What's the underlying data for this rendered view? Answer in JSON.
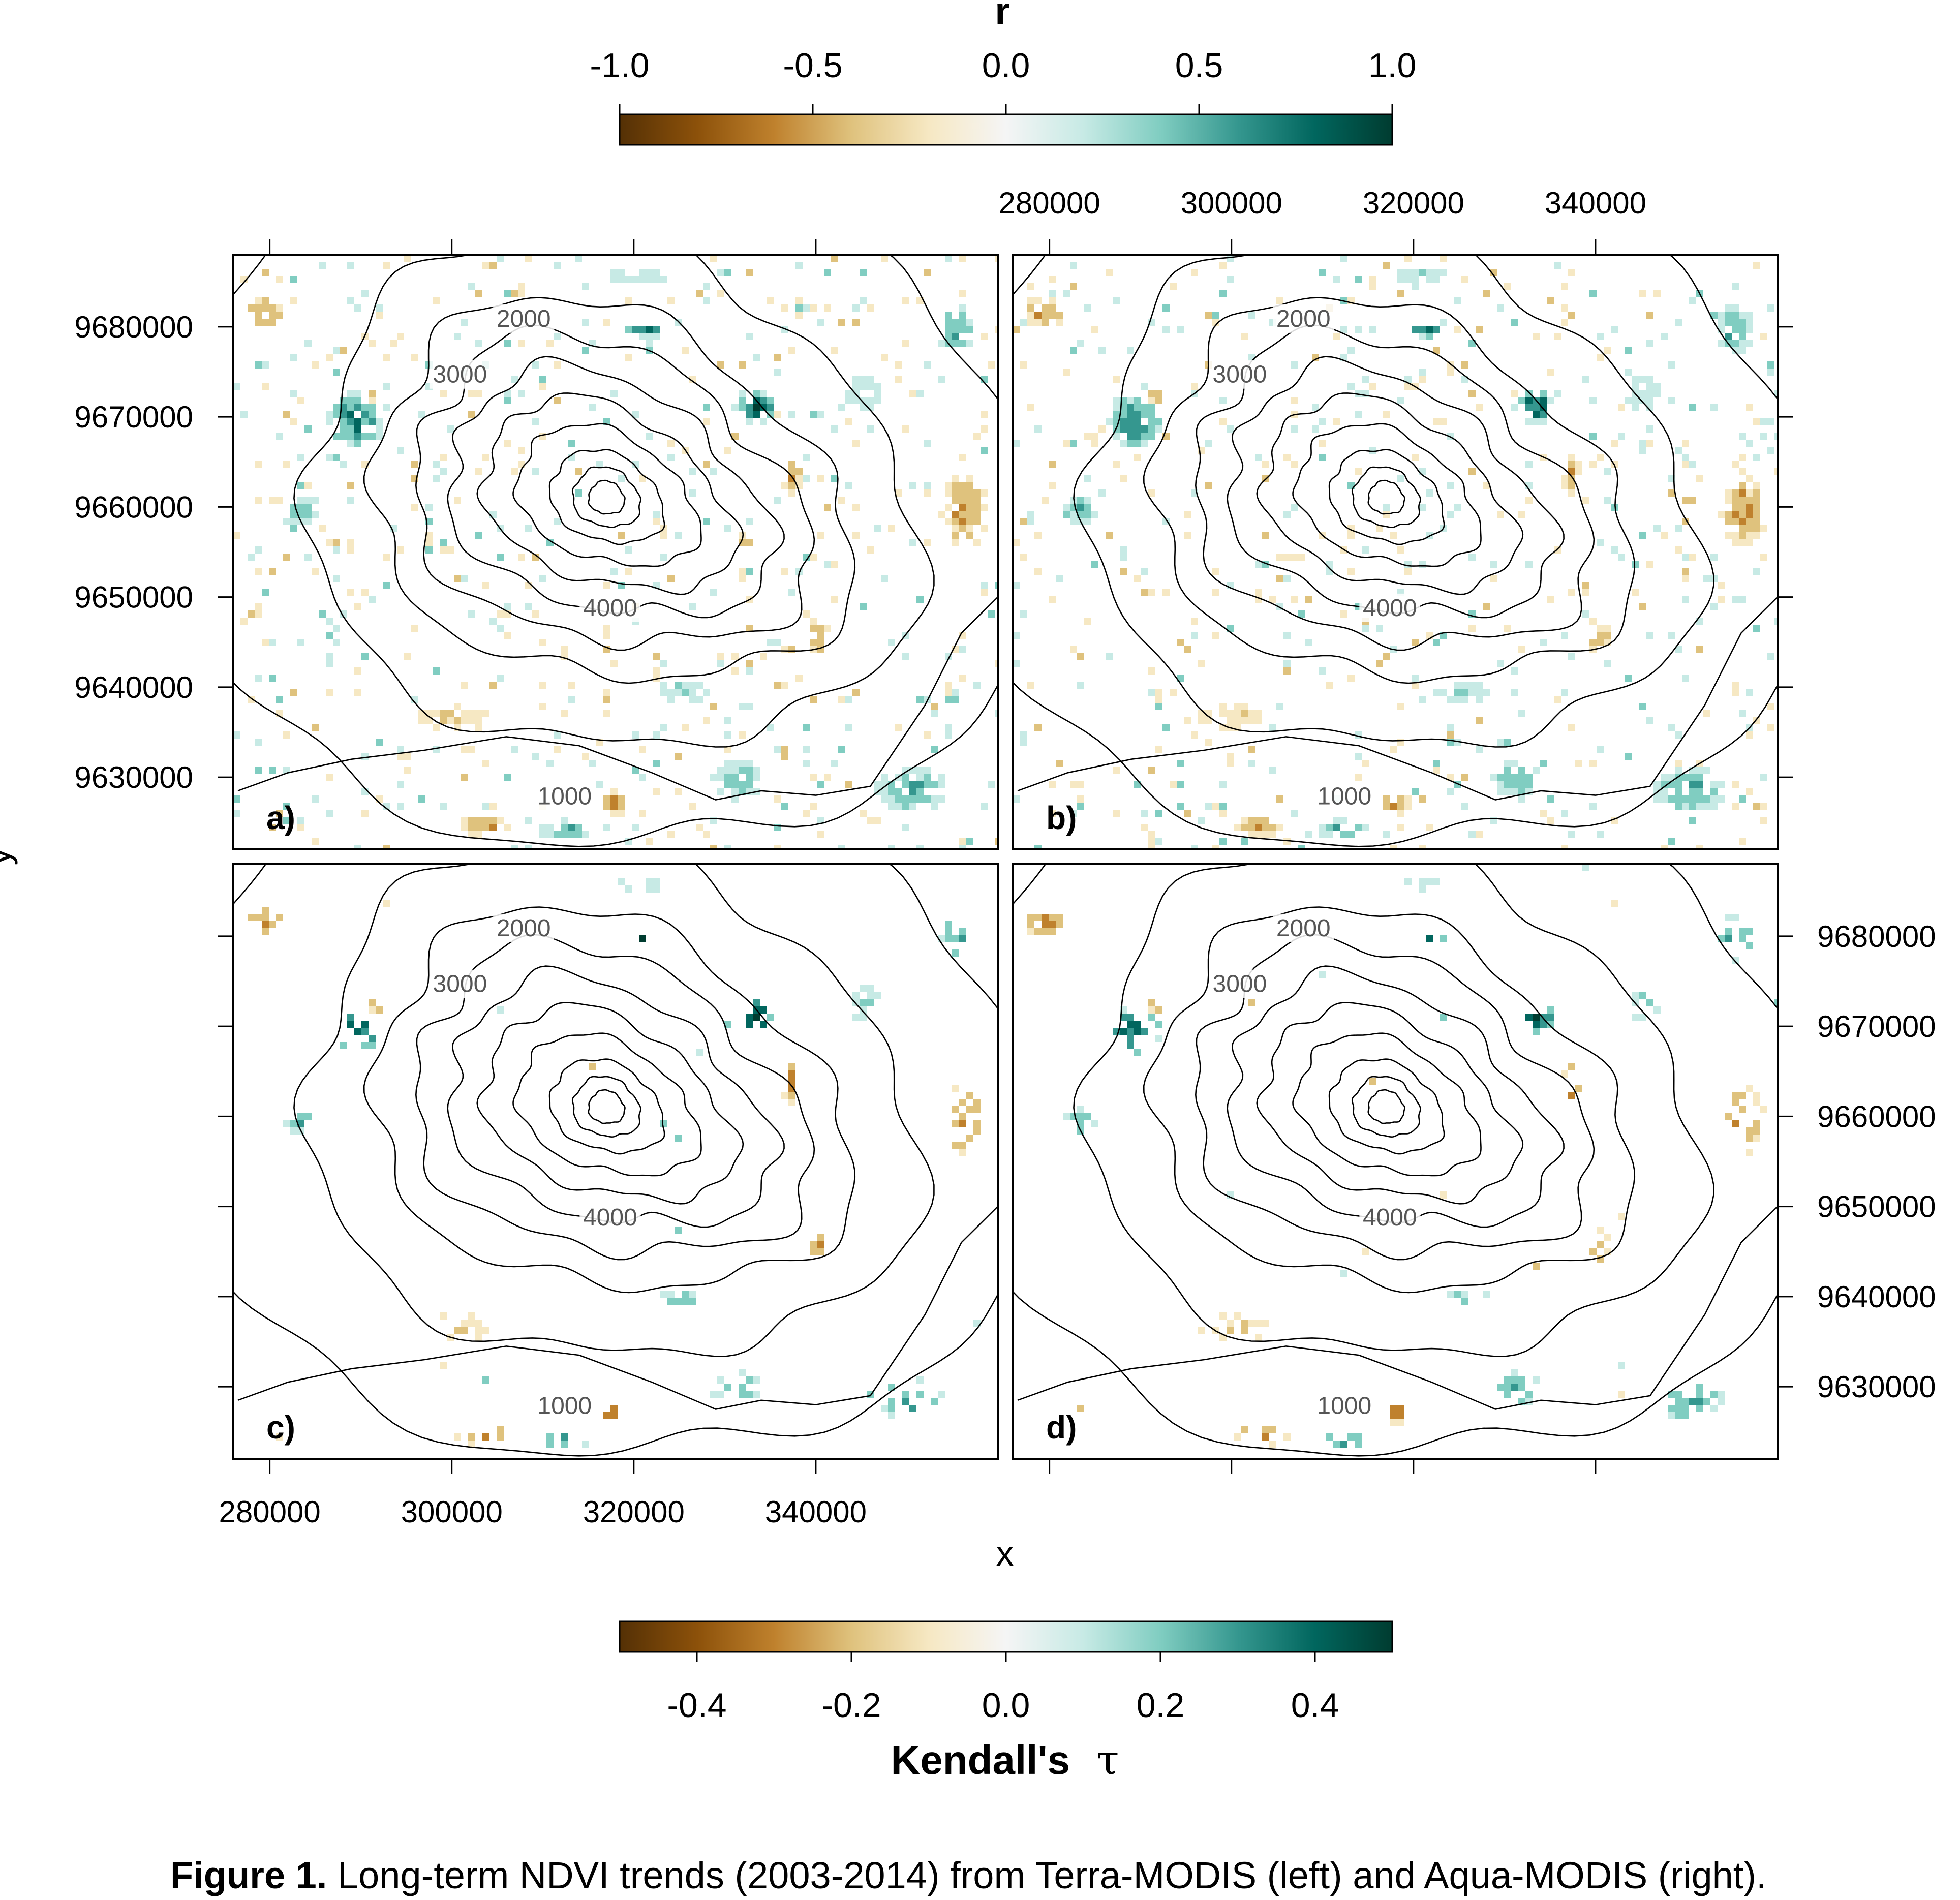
{
  "figure": {
    "caption_label": "Figure 1.",
    "caption_text": " Long-term NDVI trends (2003-2014) from Terra-MODIS (left) and Aqua-MODIS (right).",
    "xlabel": "x",
    "ylabel": "y"
  },
  "colorbar_top": {
    "title": "r",
    "min": -1.0,
    "max": 1.0,
    "ticks": [
      "-1.0",
      "-0.5",
      "0.0",
      "0.5",
      "1.0"
    ],
    "tick_values": [
      -1.0,
      -0.5,
      0.0,
      0.5,
      1.0
    ]
  },
  "colorbar_bottom": {
    "title_main": "Kendall's",
    "title_symbol": "τ",
    "min": -0.5,
    "max": 0.5,
    "ticks": [
      "-0.4",
      "-0.2",
      "0.0",
      "0.2",
      "0.4"
    ],
    "tick_values": [
      -0.4,
      -0.2,
      0.0,
      0.2,
      0.4
    ]
  },
  "colors": {
    "ramp": [
      "#543005",
      "#8c510a",
      "#bf812d",
      "#dfc27d",
      "#f6e8c3",
      "#f5f5f5",
      "#c7eae5",
      "#80cdc1",
      "#35978f",
      "#01665e",
      "#003c30"
    ],
    "contour": "#000000",
    "contour_label": "#555555"
  },
  "chart_data": {
    "type": "heatmap",
    "x_ticks": [
      "280000",
      "300000",
      "320000",
      "340000"
    ],
    "x_tick_values": [
      280000,
      300000,
      320000,
      340000
    ],
    "y_ticks": [
      "9630000",
      "9640000",
      "9650000",
      "9660000",
      "9670000",
      "9680000"
    ],
    "y_tick_values": [
      9630000,
      9640000,
      9650000,
      9660000,
      9670000,
      9680000
    ],
    "xlim": [
      276000,
      360000
    ],
    "ylim": [
      9622000,
      9688000
    ],
    "contour_labels": [
      "1000",
      "2000",
      "3000",
      "4000"
    ],
    "panels": [
      {
        "label": "a)",
        "metric": "r",
        "sensor": "Terra-MODIS",
        "density": "high"
      },
      {
        "label": "b)",
        "metric": "r",
        "sensor": "Aqua-MODIS",
        "density": "high"
      },
      {
        "label": "c)",
        "metric": "Kendall's τ",
        "sensor": "Terra-MODIS",
        "density": "low"
      },
      {
        "label": "d)",
        "metric": "Kendall's τ",
        "sensor": "Aqua-MODIS",
        "density": "low"
      }
    ]
  }
}
